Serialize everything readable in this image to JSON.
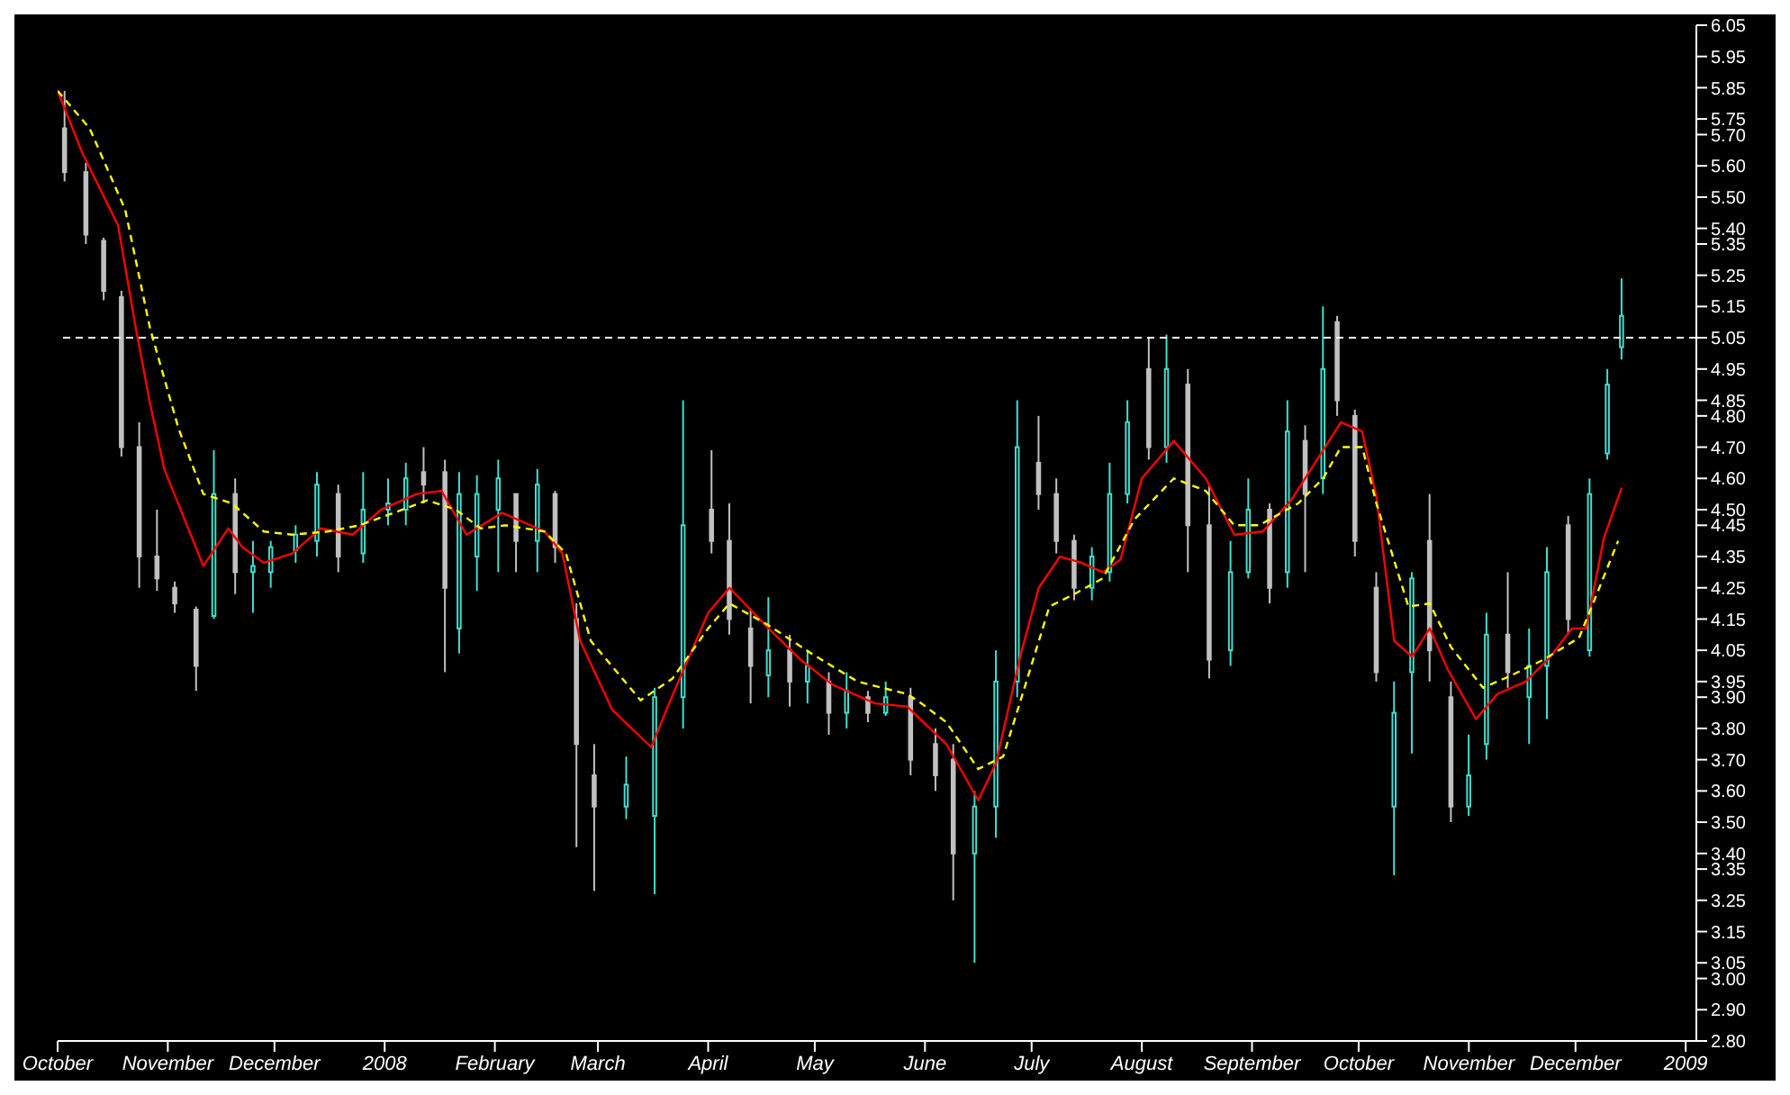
{
  "chart_data": {
    "type": "candlestick",
    "x": [
      "2007-10-03",
      "2007-10-09",
      "2007-10-14",
      "2007-10-19",
      "2007-10-24",
      "2007-10-29",
      "2007-11-03",
      "2007-11-09",
      "2007-11-14",
      "2007-11-20",
      "2007-11-25",
      "2007-11-30",
      "2007-12-07",
      "2007-12-13",
      "2007-12-19",
      "2007-12-26",
      "2008-01-02",
      "2008-01-07",
      "2008-01-12",
      "2008-01-18",
      "2008-01-22",
      "2008-01-27",
      "2008-02-02",
      "2008-02-07",
      "2008-02-13",
      "2008-02-18",
      "2008-02-24",
      "2008-02-29",
      "2008-03-09",
      "2008-03-17",
      "2008-03-25",
      "2008-04-02",
      "2008-04-07",
      "2008-04-13",
      "2008-04-18",
      "2008-04-24",
      "2008-04-29",
      "2008-05-05",
      "2008-05-10",
      "2008-05-16",
      "2008-05-21",
      "2008-05-28",
      "2008-06-04",
      "2008-06-09",
      "2008-06-15",
      "2008-06-21",
      "2008-06-27",
      "2008-07-03",
      "2008-07-08",
      "2008-07-13",
      "2008-07-18",
      "2008-07-23",
      "2008-07-28",
      "2008-08-03",
      "2008-08-08",
      "2008-08-14",
      "2008-08-20",
      "2008-08-26",
      "2008-08-31",
      "2008-09-06",
      "2008-09-11",
      "2008-09-16",
      "2008-09-21",
      "2008-09-25",
      "2008-09-30",
      "2008-10-06",
      "2008-10-11",
      "2008-10-16",
      "2008-10-21",
      "2008-10-27",
      "2008-11-01",
      "2008-11-06",
      "2008-11-12",
      "2008-11-18",
      "2008-11-23",
      "2008-11-29",
      "2008-12-05",
      "2008-12-10",
      "2008-12-14"
    ],
    "ohlc": [
      [
        5.72,
        5.84,
        5.55,
        5.58
      ],
      [
        5.58,
        5.61,
        5.35,
        5.38
      ],
      [
        5.36,
        5.37,
        5.17,
        5.2
      ],
      [
        5.18,
        5.2,
        4.67,
        4.7
      ],
      [
        4.7,
        4.78,
        4.25,
        4.35
      ],
      [
        4.35,
        4.5,
        4.24,
        4.28
      ],
      [
        4.25,
        4.27,
        4.17,
        4.2
      ],
      [
        4.18,
        4.19,
        3.92,
        4.0
      ],
      [
        4.16,
        4.69,
        4.15,
        4.55
      ],
      [
        4.55,
        4.6,
        4.23,
        4.3
      ],
      [
        4.3,
        4.4,
        4.17,
        4.32
      ],
      [
        4.3,
        4.4,
        4.25,
        4.38
      ],
      [
        4.37,
        4.45,
        4.33,
        4.42
      ],
      [
        4.4,
        4.62,
        4.35,
        4.58
      ],
      [
        4.55,
        4.58,
        4.3,
        4.35
      ],
      [
        4.36,
        4.62,
        4.33,
        4.5
      ],
      [
        4.5,
        4.6,
        4.45,
        4.52
      ],
      [
        4.5,
        4.65,
        4.45,
        4.6
      ],
      [
        4.62,
        4.7,
        4.52,
        4.58
      ],
      [
        4.62,
        4.66,
        3.98,
        4.25
      ],
      [
        4.12,
        4.62,
        4.04,
        4.55
      ],
      [
        4.35,
        4.61,
        4.24,
        4.55
      ],
      [
        4.5,
        4.66,
        4.3,
        4.6
      ],
      [
        4.55,
        4.55,
        4.3,
        4.4
      ],
      [
        4.4,
        4.63,
        4.3,
        4.58
      ],
      [
        4.55,
        4.56,
        4.33,
        4.38
      ],
      [
        4.15,
        4.2,
        3.42,
        3.75
      ],
      [
        3.65,
        3.75,
        3.28,
        3.55
      ],
      [
        3.55,
        3.71,
        3.51,
        3.62
      ],
      [
        3.52,
        3.93,
        3.27,
        3.9
      ],
      [
        3.9,
        4.85,
        3.8,
        4.45
      ],
      [
        4.5,
        4.69,
        4.36,
        4.4
      ],
      [
        4.4,
        4.52,
        4.1,
        4.15
      ],
      [
        4.12,
        4.18,
        3.88,
        4.0
      ],
      [
        3.97,
        4.22,
        3.9,
        4.05
      ],
      [
        4.05,
        4.1,
        3.87,
        3.95
      ],
      [
        3.95,
        4.05,
        3.88,
        4.0
      ],
      [
        3.95,
        3.98,
        3.78,
        3.85
      ],
      [
        3.85,
        3.98,
        3.8,
        3.92
      ],
      [
        3.9,
        3.92,
        3.82,
        3.85
      ],
      [
        3.85,
        3.95,
        3.84,
        3.9
      ],
      [
        3.9,
        3.93,
        3.65,
        3.7
      ],
      [
        3.75,
        3.8,
        3.6,
        3.65
      ],
      [
        3.7,
        3.75,
        3.25,
        3.4
      ],
      [
        3.4,
        3.6,
        3.05,
        3.55
      ],
      [
        3.55,
        4.05,
        3.45,
        3.95
      ],
      [
        3.95,
        4.85,
        3.9,
        4.7
      ],
      [
        4.65,
        4.8,
        4.5,
        4.55
      ],
      [
        4.55,
        4.6,
        4.36,
        4.4
      ],
      [
        4.4,
        4.42,
        4.21,
        4.25
      ],
      [
        4.25,
        4.38,
        4.21,
        4.35
      ],
      [
        4.3,
        4.65,
        4.27,
        4.55
      ],
      [
        4.55,
        4.85,
        4.52,
        4.78
      ],
      [
        4.95,
        5.05,
        4.66,
        4.7
      ],
      [
        4.7,
        5.06,
        4.65,
        4.95
      ],
      [
        4.9,
        4.95,
        4.3,
        4.45
      ],
      [
        4.45,
        4.58,
        3.96,
        4.02
      ],
      [
        4.05,
        4.4,
        4.0,
        4.3
      ],
      [
        4.3,
        4.6,
        4.28,
        4.5
      ],
      [
        4.5,
        4.52,
        4.2,
        4.25
      ],
      [
        4.3,
        4.85,
        4.25,
        4.75
      ],
      [
        4.72,
        4.77,
        4.3,
        4.55
      ],
      [
        4.6,
        5.15,
        4.55,
        4.95
      ],
      [
        5.1,
        5.12,
        4.8,
        4.85
      ],
      [
        4.8,
        4.82,
        4.35,
        4.4
      ],
      [
        4.25,
        4.3,
        3.95,
        3.98
      ],
      [
        3.55,
        3.95,
        3.33,
        3.85
      ],
      [
        3.98,
        4.3,
        3.72,
        4.28
      ],
      [
        4.4,
        4.55,
        3.95,
        4.05
      ],
      [
        3.9,
        3.95,
        3.5,
        3.55
      ],
      [
        3.55,
        3.78,
        3.52,
        3.65
      ],
      [
        3.75,
        4.17,
        3.7,
        4.1
      ],
      [
        4.1,
        4.3,
        3.93,
        3.98
      ],
      [
        3.9,
        4.12,
        3.75,
        4.0
      ],
      [
        4.0,
        4.38,
        3.83,
        4.3
      ],
      [
        4.45,
        4.48,
        4.1,
        4.15
      ],
      [
        4.05,
        4.6,
        4.03,
        4.55
      ],
      [
        4.68,
        4.95,
        4.66,
        4.9
      ],
      [
        5.02,
        5.24,
        4.98,
        5.12
      ]
    ],
    "colors": [
      "#c0c0c0",
      "#c0c0c0",
      "#c0c0c0",
      "#c0c0c0",
      "#c0c0c0",
      "#c0c0c0",
      "#c0c0c0",
      "#c0c0c0",
      "#40e0d0",
      "#c0c0c0",
      "#40e0d0",
      "#40e0d0",
      "#40e0d0",
      "#40e0d0",
      "#c0c0c0",
      "#40e0d0",
      "#40e0d0",
      "#40e0d0",
      "#c0c0c0",
      "#c0c0c0",
      "#40e0d0",
      "#40e0d0",
      "#40e0d0",
      "#c0c0c0",
      "#40e0d0",
      "#c0c0c0",
      "#c0c0c0",
      "#c0c0c0",
      "#40e0d0",
      "#40e0d0",
      "#40e0d0",
      "#c0c0c0",
      "#c0c0c0",
      "#c0c0c0",
      "#40e0d0",
      "#c0c0c0",
      "#40e0d0",
      "#c0c0c0",
      "#40e0d0",
      "#c0c0c0",
      "#40e0d0",
      "#c0c0c0",
      "#c0c0c0",
      "#c0c0c0",
      "#40e0d0",
      "#40e0d0",
      "#40e0d0",
      "#c0c0c0",
      "#c0c0c0",
      "#c0c0c0",
      "#40e0d0",
      "#40e0d0",
      "#40e0d0",
      "#c0c0c0",
      "#40e0d0",
      "#c0c0c0",
      "#c0c0c0",
      "#40e0d0",
      "#40e0d0",
      "#c0c0c0",
      "#40e0d0",
      "#c0c0c0",
      "#40e0d0",
      "#c0c0c0",
      "#c0c0c0",
      "#c0c0c0",
      "#40e0d0",
      "#40e0d0",
      "#c0c0c0",
      "#c0c0c0",
      "#40e0d0",
      "#40e0d0",
      "#c0c0c0",
      "#40e0d0",
      "#40e0d0",
      "#c0c0c0",
      "#40e0d0",
      "#40e0d0",
      "#40e0d0"
    ],
    "series": [
      {
        "type": "line",
        "color": "#ff0000",
        "x": [
          "2007-10-01",
          "2007-10-08",
          "2007-10-18",
          "2007-10-23",
          "2007-10-27",
          "2007-10-31",
          "2007-11-11",
          "2007-11-18",
          "2007-11-22",
          "2007-11-28",
          "2007-12-06",
          "2007-12-14",
          "2007-12-23",
          "2007-12-31",
          "2008-01-10",
          "2008-01-17",
          "2008-01-24",
          "2008-02-03",
          "2008-02-15",
          "2008-02-20",
          "2008-02-25",
          "2008-03-05",
          "2008-03-16",
          "2008-03-21",
          "2008-04-01",
          "2008-04-07",
          "2008-04-18",
          "2008-04-27",
          "2008-05-06",
          "2008-05-18",
          "2008-05-27",
          "2008-06-07",
          "2008-06-16",
          "2008-06-21",
          "2008-06-28",
          "2008-07-03",
          "2008-07-09",
          "2008-07-15",
          "2008-07-21",
          "2008-07-26",
          "2008-08-01",
          "2008-08-10",
          "2008-08-19",
          "2008-08-27",
          "2008-09-04",
          "2008-09-12",
          "2008-09-21",
          "2008-09-26",
          "2008-10-02",
          "2008-10-06",
          "2008-10-11",
          "2008-10-16",
          "2008-10-21",
          "2008-10-26",
          "2008-11-03",
          "2008-11-09",
          "2008-11-17",
          "2008-11-24",
          "2008-11-30",
          "2008-12-04",
          "2008-12-09",
          "2008-12-14"
        ],
        "values": [
          5.84,
          5.64,
          5.41,
          5.08,
          4.84,
          4.63,
          4.32,
          4.44,
          4.38,
          4.33,
          4.36,
          4.44,
          4.42,
          4.5,
          4.55,
          4.56,
          4.42,
          4.49,
          4.43,
          4.36,
          4.08,
          3.86,
          3.74,
          3.88,
          4.17,
          4.25,
          4.12,
          4.02,
          3.94,
          3.88,
          3.87,
          3.75,
          3.57,
          3.69,
          4.04,
          4.25,
          4.35,
          4.33,
          4.3,
          4.34,
          4.6,
          4.72,
          4.6,
          4.42,
          4.43,
          4.53,
          4.69,
          4.78,
          4.75,
          4.54,
          4.08,
          4.03,
          4.12,
          3.99,
          3.83,
          3.91,
          3.95,
          4.03,
          4.12,
          4.12,
          4.41,
          4.57
        ]
      },
      {
        "type": "line",
        "color": "#ffff00",
        "line_style": "dashed",
        "x": [
          "2007-10-01",
          "2007-10-10",
          "2007-10-20",
          "2007-10-27",
          "2007-11-04",
          "2007-11-11",
          "2007-11-19",
          "2007-11-28",
          "2007-12-06",
          "2007-12-16",
          "2007-12-25",
          "2008-01-06",
          "2008-01-13",
          "2008-01-21",
          "2008-01-28",
          "2008-02-04",
          "2008-02-15",
          "2008-02-21",
          "2008-02-28",
          "2008-03-13",
          "2008-03-22",
          "2008-04-01",
          "2008-04-07",
          "2008-04-18",
          "2008-04-30",
          "2008-05-13",
          "2008-05-27",
          "2008-05-31",
          "2008-06-07",
          "2008-06-16",
          "2008-06-23",
          "2008-06-29",
          "2008-07-06",
          "2008-07-13",
          "2008-07-21",
          "2008-07-30",
          "2008-08-10",
          "2008-08-19",
          "2008-08-27",
          "2008-09-03",
          "2008-09-14",
          "2008-09-21",
          "2008-09-26",
          "2008-10-02",
          "2008-10-06",
          "2008-10-15",
          "2008-10-21",
          "2008-10-27",
          "2008-11-05",
          "2008-11-13",
          "2008-11-22",
          "2008-12-02",
          "2008-12-07",
          "2008-12-13"
        ],
        "values": [
          5.84,
          5.72,
          5.46,
          5.08,
          4.76,
          4.55,
          4.52,
          4.43,
          4.42,
          4.43,
          4.45,
          4.5,
          4.53,
          4.5,
          4.44,
          4.45,
          4.43,
          4.36,
          4.08,
          3.89,
          3.96,
          4.12,
          4.2,
          4.13,
          4.04,
          3.95,
          3.91,
          3.88,
          3.82,
          3.67,
          3.71,
          3.93,
          4.19,
          4.23,
          4.28,
          4.47,
          4.6,
          4.56,
          4.45,
          4.45,
          4.52,
          4.6,
          4.7,
          4.7,
          4.52,
          4.19,
          4.2,
          4.06,
          3.93,
          3.97,
          4.02,
          4.09,
          4.23,
          4.4
        ]
      }
    ],
    "ref_lines": [
      {
        "axis": "y",
        "value": 5.05,
        "color": "#ffffff",
        "line_style": "dashed"
      }
    ],
    "xlim": [
      "2007-10-01",
      "2009-01-04"
    ],
    "xticks": [
      {
        "value": "2007-10-01",
        "label": "October"
      },
      {
        "value": "2007-11-01",
        "label": "November"
      },
      {
        "value": "2007-12-01",
        "label": "December"
      },
      {
        "value": "2008-01-01",
        "label": "2008"
      },
      {
        "value": "2008-02-01",
        "label": "February"
      },
      {
        "value": "2008-03-01",
        "label": "March"
      },
      {
        "value": "2008-04-01",
        "label": "April"
      },
      {
        "value": "2008-05-01",
        "label": "May"
      },
      {
        "value": "2008-06-01",
        "label": "June"
      },
      {
        "value": "2008-07-01",
        "label": "July"
      },
      {
        "value": "2008-08-01",
        "label": "August"
      },
      {
        "value": "2008-09-01",
        "label": "September"
      },
      {
        "value": "2008-10-01",
        "label": "October"
      },
      {
        "value": "2008-11-01",
        "label": "November"
      },
      {
        "value": "2008-12-01",
        "label": "December"
      },
      {
        "value": "2009-01-01",
        "label": "2009"
      }
    ],
    "ylim": [
      2.8,
      6.05
    ],
    "yticks": [
      {
        "value": 2.8,
        "label": "2.80"
      },
      {
        "value": 2.9,
        "label": "2.90"
      },
      {
        "value": 3.0,
        "label": "3.00"
      },
      3.05,
      3.15,
      3.25,
      3.35,
      {
        "value": 3.4,
        "label": "3.40"
      },
      {
        "value": 3.5,
        "label": "3.50"
      },
      {
        "value": 3.6,
        "label": "3.60"
      },
      {
        "value": 3.7,
        "label": "3.70"
      },
      {
        "value": 3.8,
        "label": "3.80"
      },
      {
        "value": 3.9,
        "label": "3.90"
      },
      3.95,
      4.05,
      4.15,
      4.25,
      4.35,
      4.45,
      {
        "value": 4.5,
        "label": "4.50"
      },
      {
        "value": 4.6,
        "label": "4.60"
      },
      {
        "value": 4.7,
        "label": "4.70"
      },
      {
        "value": 4.8,
        "label": "4.80"
      },
      4.85,
      4.95,
      5.05,
      5.15,
      5.25,
      5.35,
      {
        "value": 5.4,
        "label": "5.40"
      },
      {
        "value": 5.5,
        "label": "5.50"
      },
      {
        "value": 5.6,
        "label": "5.60"
      },
      {
        "value": 5.7,
        "label": "5.70"
      },
      5.75,
      5.85,
      5.95,
      6.05
    ],
    "grid": false,
    "legend": false
  }
}
